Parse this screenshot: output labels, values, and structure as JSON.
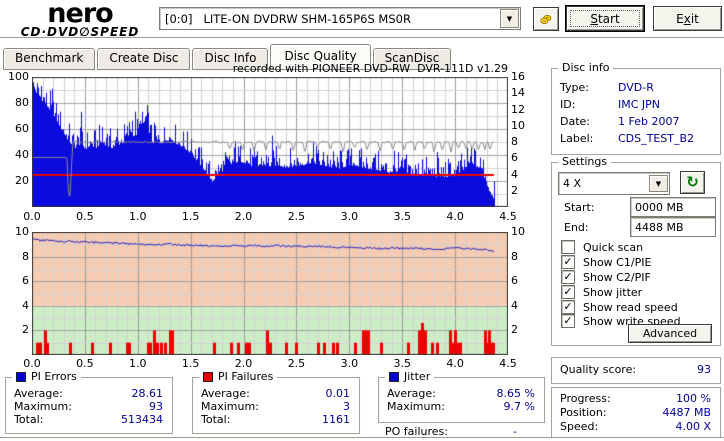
{
  "header": {
    "brand_line1": "nero",
    "brand_line2": "CD·DVD∅SPEED",
    "drive": "[0:0]   LITE-ON DVDRW SHM-165P6S MS0R",
    "start_button": {
      "pre": "",
      "accel": "S",
      "post": "tart"
    },
    "exit_button": {
      "pre": "E",
      "accel": "x",
      "post": "it"
    }
  },
  "tabs": {
    "items": [
      {
        "label": "Benchmark",
        "active": false
      },
      {
        "label": "Create Disc",
        "active": false
      },
      {
        "label": "Disc Info",
        "active": false
      },
      {
        "label": "Disc Quality",
        "active": true
      },
      {
        "label": "ScanDisc",
        "active": false
      }
    ]
  },
  "chart_data": [
    {
      "type": "area",
      "title": "recorded with PIONEER DVD-RW  DVR-111D v1.29",
      "x_ticks": [
        "0.0",
        "0.5",
        "1.0",
        "1.5",
        "2.0",
        "2.5",
        "3.0",
        "3.5",
        "4.0",
        "4.5"
      ],
      "y_left_ticks": [
        100,
        80,
        60,
        40,
        20
      ],
      "y_right_ticks": [
        16,
        14,
        12,
        10,
        8,
        6,
        4,
        2
      ],
      "x_range": [
        0,
        4.5
      ],
      "y_left_range": [
        0,
        100
      ],
      "y_right_range": [
        0,
        16
      ],
      "x_data_end": 4.37,
      "grid": true,
      "series": [
        {
          "name": "PI Errors",
          "kind": "area",
          "axis": "left",
          "color": "#0b0bdd",
          "points": [
            [
              0.0,
              85
            ],
            [
              0.02,
              92
            ],
            [
              0.05,
              88
            ],
            [
              0.08,
              84
            ],
            [
              0.11,
              83
            ],
            [
              0.14,
              79
            ],
            [
              0.17,
              76
            ],
            [
              0.2,
              73
            ],
            [
              0.24,
              67
            ],
            [
              0.28,
              61
            ],
            [
              0.32,
              55
            ],
            [
              0.36,
              51
            ],
            [
              0.4,
              47
            ],
            [
              0.45,
              50
            ],
            [
              0.5,
              46
            ],
            [
              0.55,
              49
            ],
            [
              0.6,
              47
            ],
            [
              0.65,
              51
            ],
            [
              0.7,
              49
            ],
            [
              0.75,
              47
            ],
            [
              0.8,
              49
            ],
            [
              0.85,
              51
            ],
            [
              0.9,
              55
            ],
            [
              0.93,
              60
            ],
            [
              0.96,
              56
            ],
            [
              1.0,
              58
            ],
            [
              1.04,
              62
            ],
            [
              1.08,
              69
            ],
            [
              1.1,
              61
            ],
            [
              1.13,
              52
            ],
            [
              1.17,
              50
            ],
            [
              1.22,
              51
            ],
            [
              1.27,
              53
            ],
            [
              1.32,
              53
            ],
            [
              1.37,
              50
            ],
            [
              1.42,
              48
            ],
            [
              1.47,
              45
            ],
            [
              1.52,
              41
            ],
            [
              1.57,
              36
            ],
            [
              1.62,
              31
            ],
            [
              1.66,
              26
            ],
            [
              1.7,
              21
            ],
            [
              1.74,
              25
            ],
            [
              1.79,
              29
            ],
            [
              1.84,
              32
            ],
            [
              1.9,
              35
            ],
            [
              1.95,
              37
            ],
            [
              2.0,
              36
            ],
            [
              2.06,
              34
            ],
            [
              2.12,
              32
            ],
            [
              2.18,
              34
            ],
            [
              2.25,
              33
            ],
            [
              2.32,
              34
            ],
            [
              2.4,
              32
            ],
            [
              2.48,
              33
            ],
            [
              2.56,
              34
            ],
            [
              2.64,
              36
            ],
            [
              2.72,
              34
            ],
            [
              2.8,
              33
            ],
            [
              2.88,
              31
            ],
            [
              2.96,
              33
            ],
            [
              3.04,
              34
            ],
            [
              3.12,
              32
            ],
            [
              3.2,
              31
            ],
            [
              3.28,
              30
            ],
            [
              3.36,
              28
            ],
            [
              3.44,
              29
            ],
            [
              3.52,
              28
            ],
            [
              3.6,
              27
            ],
            [
              3.68,
              26
            ],
            [
              3.76,
              26
            ],
            [
              3.84,
              25
            ],
            [
              3.92,
              25
            ],
            [
              4.0,
              26
            ],
            [
              4.06,
              29
            ],
            [
              4.12,
              33
            ],
            [
              4.17,
              35
            ],
            [
              4.22,
              31
            ],
            [
              4.26,
              27
            ],
            [
              4.29,
              21
            ],
            [
              4.32,
              14
            ],
            [
              4.35,
              10
            ],
            [
              4.37,
              7
            ]
          ]
        },
        {
          "name": "write speed",
          "kind": "hline",
          "axis": "right",
          "color": "#ee0000",
          "value": 4.0
        },
        {
          "name": "read speed",
          "kind": "speedline",
          "axis": "right",
          "color": "#8c8c8c",
          "points": [
            [
              0,
              6.1
            ],
            [
              0.33,
              6.1
            ],
            [
              0.345,
              1.4
            ],
            [
              0.36,
              1.4
            ],
            [
              0.385,
              8.0
            ],
            [
              4.37,
              8.0
            ]
          ],
          "dips": [
            1.87,
            1.99,
            2.1,
            2.21,
            2.34,
            2.47,
            2.58,
            2.7,
            2.82,
            2.94,
            3.05,
            3.17,
            3.29,
            3.41,
            3.52,
            3.62,
            3.71,
            3.8,
            3.88,
            3.96,
            4.03,
            4.1,
            4.16,
            4.22,
            4.28,
            4.33
          ],
          "dip_depth": 1.0
        }
      ]
    },
    {
      "type": "line+bar",
      "x_ticks": [
        "0.0",
        "0.5",
        "1.0",
        "1.5",
        "2.0",
        "2.5",
        "3.0",
        "3.5",
        "4.0",
        "4.5"
      ],
      "y_left_ticks": [
        10,
        8,
        6,
        4,
        2
      ],
      "y_right_ticks": [
        10,
        8,
        6,
        4,
        2
      ],
      "x_range": [
        0,
        4.5
      ],
      "y_range": [
        0,
        10
      ],
      "x_data_end": 4.37,
      "grid": true,
      "zones": [
        {
          "from": 4,
          "to": 10,
          "color": "#f6cbb1"
        },
        {
          "from": 0,
          "to": 4,
          "color": "#cdedc6"
        }
      ],
      "series": [
        {
          "name": "Jitter",
          "kind": "line",
          "color": "#2525c8",
          "points": [
            [
              0.0,
              9.55
            ],
            [
              0.02,
              9.4
            ],
            [
              0.05,
              9.35
            ],
            [
              0.1,
              9.3
            ],
            [
              0.15,
              9.35
            ],
            [
              0.2,
              9.3
            ],
            [
              0.25,
              9.25
            ],
            [
              0.3,
              9.2
            ],
            [
              0.35,
              9.25
            ],
            [
              0.4,
              9.15
            ],
            [
              0.5,
              9.2
            ],
            [
              0.6,
              9.15
            ],
            [
              0.7,
              9.1
            ],
            [
              0.8,
              9.1
            ],
            [
              0.9,
              9.05
            ],
            [
              1.0,
              9.0
            ],
            [
              1.1,
              9.0
            ],
            [
              1.2,
              8.95
            ],
            [
              1.3,
              9.0
            ],
            [
              1.4,
              8.95
            ],
            [
              1.5,
              8.9
            ],
            [
              1.6,
              8.9
            ],
            [
              1.7,
              8.85
            ],
            [
              1.8,
              8.85
            ],
            [
              1.9,
              8.9
            ],
            [
              2.0,
              8.85
            ],
            [
              2.1,
              8.9
            ],
            [
              2.2,
              8.85
            ],
            [
              2.3,
              8.9
            ],
            [
              2.4,
              8.85
            ],
            [
              2.5,
              8.85
            ],
            [
              2.6,
              8.8
            ],
            [
              2.7,
              8.85
            ],
            [
              2.8,
              8.8
            ],
            [
              2.9,
              8.75
            ],
            [
              3.0,
              8.75
            ],
            [
              3.1,
              8.7
            ],
            [
              3.2,
              8.7
            ],
            [
              3.3,
              8.65
            ],
            [
              3.4,
              8.7
            ],
            [
              3.5,
              8.65
            ],
            [
              3.6,
              8.7
            ],
            [
              3.7,
              8.65
            ],
            [
              3.8,
              8.6
            ],
            [
              3.9,
              8.65
            ],
            [
              4.0,
              8.7
            ],
            [
              4.05,
              8.65
            ],
            [
              4.1,
              8.6
            ],
            [
              4.15,
              8.65
            ],
            [
              4.2,
              8.6
            ],
            [
              4.25,
              8.55
            ],
            [
              4.3,
              8.6
            ],
            [
              4.35,
              8.45
            ]
          ]
        },
        {
          "name": "PI Failures",
          "kind": "bars",
          "color": "#ee0000",
          "bars": [
            [
              0.05,
              1
            ],
            [
              0.08,
              1
            ],
            [
              0.12,
              2
            ],
            [
              0.14,
              1
            ],
            [
              0.36,
              1
            ],
            [
              0.57,
              1
            ],
            [
              0.74,
              1
            ],
            [
              0.9,
              1
            ],
            [
              0.92,
              1
            ],
            [
              1.1,
              1
            ],
            [
              1.12,
              1
            ],
            [
              1.15,
              2
            ],
            [
              1.18,
              1
            ],
            [
              1.22,
              1
            ],
            [
              1.26,
              1
            ],
            [
              1.3,
              2
            ],
            [
              1.32,
              2
            ],
            [
              1.72,
              1
            ],
            [
              1.88,
              1
            ],
            [
              1.95,
              1
            ],
            [
              2.02,
              1
            ],
            [
              2.05,
              1
            ],
            [
              2.22,
              2
            ],
            [
              2.25,
              1
            ],
            [
              2.4,
              1
            ],
            [
              2.5,
              1
            ],
            [
              2.7,
              1
            ],
            [
              2.76,
              1
            ],
            [
              2.85,
              1
            ],
            [
              2.88,
              1
            ],
            [
              3.05,
              1
            ],
            [
              3.13,
              2
            ],
            [
              3.15,
              2
            ],
            [
              3.18,
              2
            ],
            [
              3.3,
              1
            ],
            [
              3.55,
              1
            ],
            [
              3.66,
              2
            ],
            [
              3.69,
              2.6
            ],
            [
              3.72,
              2
            ],
            [
              3.78,
              1
            ],
            [
              3.83,
              1
            ],
            [
              3.95,
              2
            ],
            [
              3.97,
              1
            ],
            [
              4.0,
              2
            ],
            [
              4.02,
              1
            ],
            [
              4.05,
              1
            ],
            [
              4.28,
              2
            ],
            [
              4.3,
              1
            ],
            [
              4.32,
              2
            ],
            [
              4.34,
              1
            ],
            [
              4.36,
              1
            ]
          ]
        }
      ]
    }
  ],
  "disc_info": {
    "title": "Disc info",
    "rows": [
      [
        "Type:",
        "DVD-R"
      ],
      [
        "ID:",
        "IMC JPN"
      ],
      [
        "Date:",
        "1 Feb 2007"
      ],
      [
        "Label:",
        "CDS_TEST_B2"
      ]
    ]
  },
  "settings": {
    "title": "Settings",
    "speed_select": "4 X",
    "start_label": "Start:",
    "start_value": "0000 MB",
    "end_label": "End:",
    "end_value": "4488 MB",
    "checkboxes": [
      {
        "label": "Quick scan",
        "checked": false
      },
      {
        "label": "Show C1/PIE",
        "checked": true
      },
      {
        "label": "Show C2/PIF",
        "checked": true
      },
      {
        "label": "Show jitter",
        "checked": true
      },
      {
        "label": "Show read speed",
        "checked": true
      },
      {
        "label": "Show write speed",
        "checked": true
      }
    ],
    "advanced_button": "Advanced"
  },
  "quality": {
    "label": "Quality score:",
    "value": "93"
  },
  "progress": {
    "rows": [
      [
        "Progress:",
        "100 %"
      ],
      [
        "Position:",
        "4487 MB"
      ],
      [
        "Speed:",
        "4.00 X"
      ]
    ]
  },
  "stats": {
    "pi_errors": {
      "title": "PI Errors",
      "color": "#0000d0",
      "rows": [
        [
          "Average:",
          "28.61"
        ],
        [
          "Maximum:",
          "93"
        ],
        [
          "Total:",
          "513434"
        ]
      ]
    },
    "pi_failures": {
      "title": "PI Failures",
      "color": "#e80000",
      "rows": [
        [
          "Average:",
          "0.01"
        ],
        [
          "Maximum:",
          "3"
        ],
        [
          "Total:",
          "1161"
        ]
      ]
    },
    "jitter": {
      "title": "Jitter",
      "color": "#0000d0",
      "rows": [
        [
          "Average:",
          "8.65 %"
        ],
        [
          "Maximum:",
          "9.7 %"
        ]
      ]
    },
    "po_failures": {
      "label": "PO failures:",
      "value": "-"
    }
  },
  "colors": {
    "value_text": "#000099",
    "pie_fill": "#0b0bdd",
    "pif_red": "#ee0000",
    "jitter_zone_high": "#f6cbb1",
    "jitter_zone_low": "#cdedc6"
  }
}
